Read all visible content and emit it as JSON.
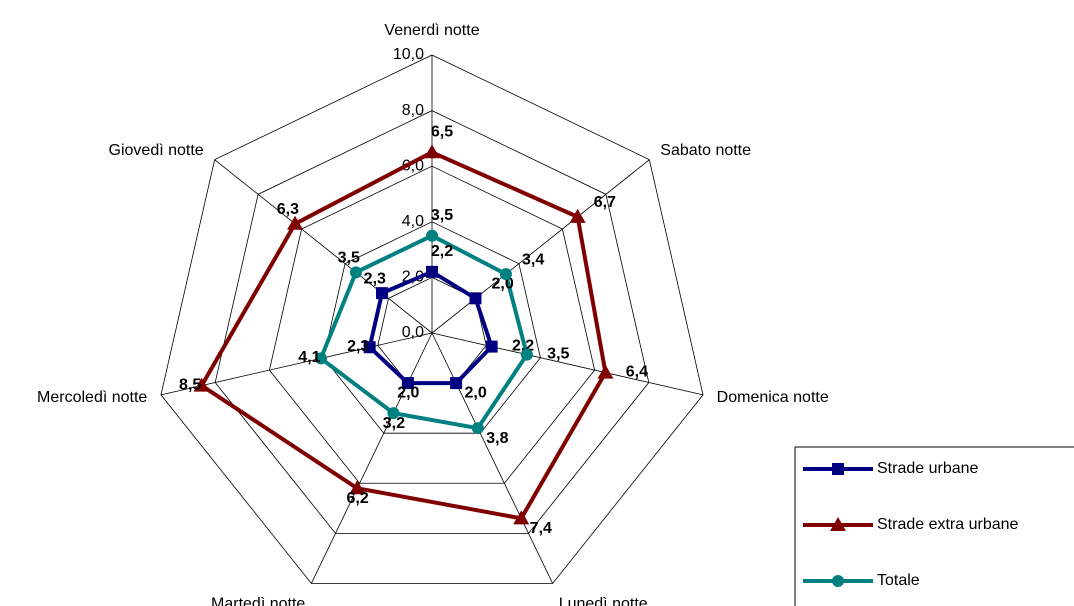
{
  "chart_data": {
    "type": "radar",
    "categories": [
      "Venerdì notte",
      "Sabato notte",
      "Domenica notte",
      "Lunedì notte",
      "Martedì notte",
      "Mercoledì notte",
      "Giovedì notte"
    ],
    "series": [
      {
        "name": "Strade urbane",
        "color": "#000080",
        "marker": "square",
        "values": [
          2.2,
          2.0,
          2.2,
          2.0,
          2.0,
          2.3,
          2.3
        ],
        "value_labels": [
          "2,2",
          "2,0",
          "2,2",
          "2,0",
          "2,0",
          "2,3",
          "2,3"
        ]
      },
      {
        "name": "Strade extra urbane",
        "color": "#800000",
        "marker": "triangle",
        "values": [
          6.5,
          6.7,
          6.4,
          7.4,
          6.2,
          8.5,
          6.3
        ],
        "value_labels": [
          "6,5",
          "6,7",
          "6,4",
          "7,4",
          "6,2",
          "8,5",
          "6,3"
        ]
      },
      {
        "name": "Totale",
        "color": "#008080",
        "marker": "circle",
        "values": [
          3.5,
          3.4,
          3.5,
          3.8,
          3.2,
          4.1,
          3.5
        ],
        "value_labels": [
          "3,5",
          "3,4",
          "3,5",
          "3,8",
          "3,2",
          "4,1",
          "3,5"
        ]
      }
    ],
    "ylim": [
      0,
      10
    ],
    "yticks": [
      {
        "value": 0,
        "label": "0,0"
      },
      {
        "value": 2,
        "label": "2,0"
      },
      {
        "value": 4,
        "label": "4,0"
      },
      {
        "value": 6,
        "label": "6,0"
      },
      {
        "value": 8,
        "label": "8,0"
      },
      {
        "value": 10,
        "label": "10,0"
      }
    ],
    "grid": true,
    "legend": "lower right"
  }
}
